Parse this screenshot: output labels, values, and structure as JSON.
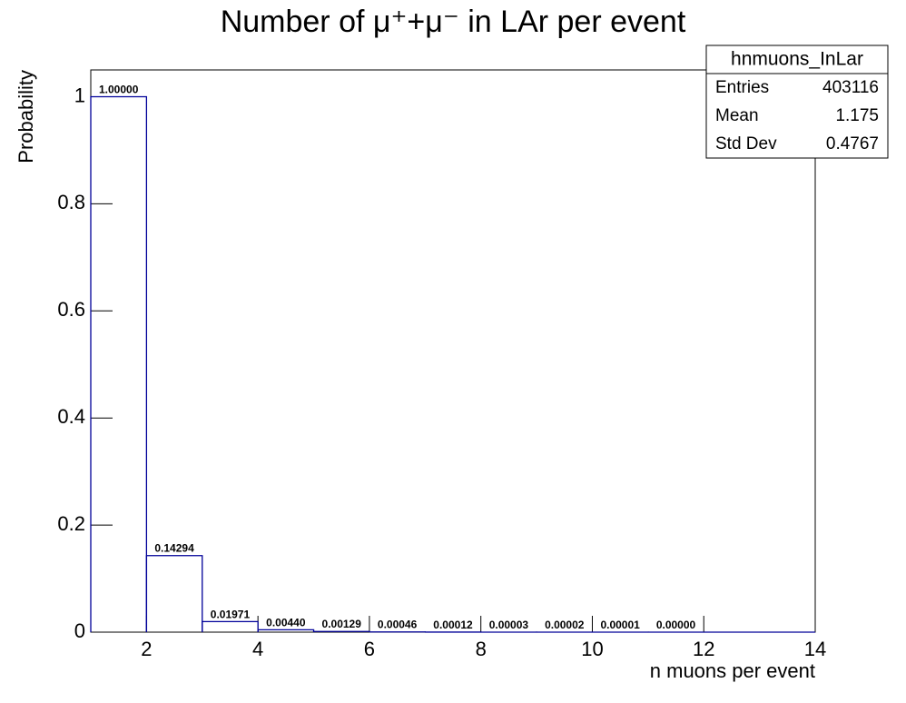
{
  "chart_data": {
    "type": "histogram",
    "title": "Number of μ⁺+μ⁻ in LAr per event",
    "x_label": "n muons per event",
    "y_label": "Probability",
    "bins": [
      1,
      2,
      3,
      4,
      5,
      6,
      7,
      8,
      9,
      10,
      11,
      12,
      13,
      14
    ],
    "values": [
      1,
      0.14294,
      0.01971,
      0.0044,
      0.00129,
      0.00046,
      0.00012,
      3e-05,
      2e-05,
      1e-05,
      0,
      0,
      0
    ],
    "value_labels": [
      "1.00000",
      "0.14294",
      "0.01971",
      "0.00440",
      "0.00129",
      "0.00046",
      "0.00012",
      "0.00003",
      "0.00002",
      "0.00001",
      "0.00000",
      null,
      null
    ],
    "color": "#000099",
    "xlim": [
      1,
      14
    ],
    "xticks": [
      2,
      4,
      6,
      8,
      10,
      12,
      14
    ],
    "ylim": [
      0,
      1.05
    ],
    "yticks": [
      0,
      0.2,
      0.4,
      0.6,
      0.8,
      1
    ],
    "stats_box": {
      "name": "hnmuons_InLar",
      "rows": [
        {
          "label": "Entries",
          "value": 403116
        },
        {
          "label": "Mean",
          "value": 1.175
        },
        {
          "label": "Std Dev",
          "value": 0.4767
        }
      ]
    }
  }
}
